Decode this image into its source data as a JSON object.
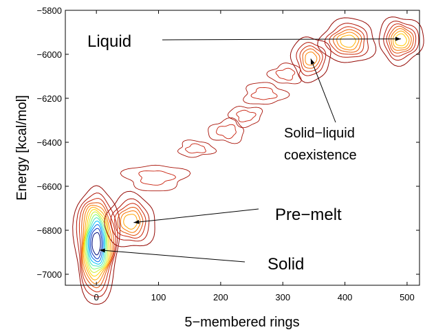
{
  "chart_data": {
    "type": "contour",
    "xlabel": "5−membered rings",
    "ylabel": "Energy [kcal/mol]",
    "xlim": [
      -50,
      520
    ],
    "ylim": [
      -7050,
      -5800
    ],
    "xticks": [
      0,
      100,
      200,
      300,
      400,
      500
    ],
    "xtick_labels": [
      "0",
      "100",
      "200",
      "300",
      "400",
      "500"
    ],
    "yticks": [
      -7000,
      -6800,
      -6600,
      -6400,
      -6200,
      -6000,
      -5800
    ],
    "ytick_labels": [
      "−7000",
      "−6800",
      "−6600",
      "−6400",
      "−6200",
      "−6000",
      "−5800"
    ],
    "grid": false,
    "colormap": "jet",
    "peaks": [
      {
        "x": 0,
        "y": -6860,
        "sx": 16,
        "sy": 120,
        "amp": 1.0,
        "levels": 14
      },
      {
        "x": 55,
        "y": -6760,
        "sx": 18,
        "sy": 55,
        "amp": 0.42,
        "levels": 6
      },
      {
        "x": 345,
        "y": -6020,
        "sx": 14,
        "sy": 45,
        "amp": 0.38,
        "levels": 5
      },
      {
        "x": 405,
        "y": -5940,
        "sx": 20,
        "sy": 45,
        "amp": 0.45,
        "levels": 6
      },
      {
        "x": 490,
        "y": -5935,
        "sx": 16,
        "sy": 48,
        "amp": 0.48,
        "levels": 7
      }
    ],
    "trail": [
      {
        "x": 95,
        "y": -6560,
        "sx": 38,
        "sy": 45
      },
      {
        "x": 160,
        "y": -6430,
        "sx": 22,
        "sy": 28
      },
      {
        "x": 210,
        "y": -6350,
        "sx": 22,
        "sy": 40
      },
      {
        "x": 240,
        "y": -6280,
        "sx": 20,
        "sy": 35
      },
      {
        "x": 270,
        "y": -6180,
        "sx": 26,
        "sy": 38
      },
      {
        "x": 305,
        "y": -6090,
        "sx": 20,
        "sy": 35
      }
    ],
    "annotations": [
      {
        "text": "Liquid",
        "point": [
          490,
          -5930
        ]
      },
      {
        "text": "Solid−liquid",
        "text2": "coexistence",
        "point": [
          345,
          -6020
        ]
      },
      {
        "text": "Pre−melt",
        "point": [
          60,
          -6765
        ]
      },
      {
        "text": "Solid",
        "point": [
          5,
          -6890
        ]
      }
    ]
  }
}
